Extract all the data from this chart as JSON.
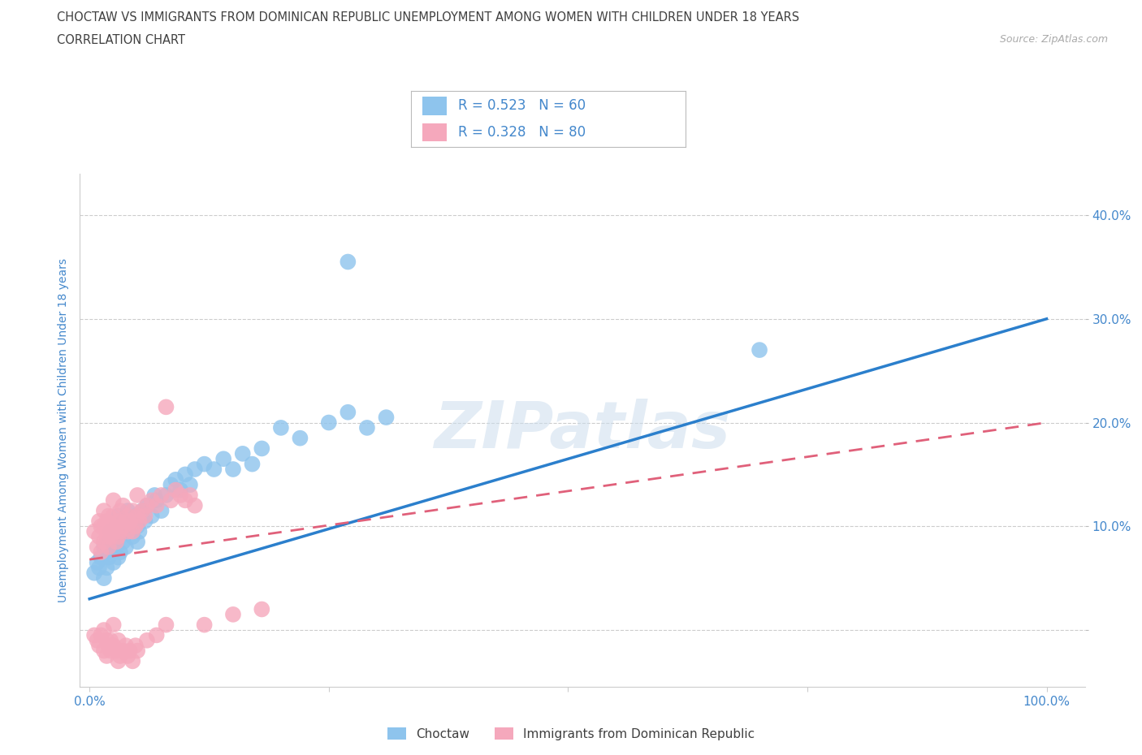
{
  "title_line1": "CHOCTAW VS IMMIGRANTS FROM DOMINICAN REPUBLIC UNEMPLOYMENT AMONG WOMEN WITH CHILDREN UNDER 18 YEARS",
  "title_line2": "CORRELATION CHART",
  "source_text": "Source: ZipAtlas.com",
  "ylabel": "Unemployment Among Women with Children Under 18 years",
  "x_tick_positions": [
    0.0,
    0.25,
    0.5,
    0.75,
    1.0
  ],
  "x_tick_labels": [
    "0.0%",
    "",
    "",
    "",
    "100.0%"
  ],
  "y_tick_positions": [
    0.0,
    0.1,
    0.2,
    0.3,
    0.4
  ],
  "y_tick_labels": [
    "",
    "10.0%",
    "20.0%",
    "30.0%",
    "40.0%"
  ],
  "xlim": [
    -0.01,
    1.04
  ],
  "ylim": [
    -0.055,
    0.44
  ],
  "watermark": "ZIPatlas",
  "legend_r1": "R = 0.523   N = 60",
  "legend_r2": "R = 0.328   N = 80",
  "choctaw_color": "#8ec4ed",
  "immigrant_color": "#f5a8bc",
  "choctaw_line_color": "#2b7fcc",
  "immigrant_line_color": "#e0607a",
  "title_color": "#404040",
  "tick_label_color": "#4488cc",
  "background_color": "#ffffff",
  "choctaw_trend_x0": 0.0,
  "choctaw_trend_x1": 1.0,
  "choctaw_trend_y0": 0.03,
  "choctaw_trend_y1": 0.3,
  "immigrant_trend_x0": 0.0,
  "immigrant_trend_x1": 1.0,
  "immigrant_trend_y0": 0.068,
  "immigrant_trend_y1": 0.2,
  "choctaw_points": [
    [
      0.005,
      0.055
    ],
    [
      0.008,
      0.065
    ],
    [
      0.01,
      0.06
    ],
    [
      0.012,
      0.07
    ],
    [
      0.015,
      0.05
    ],
    [
      0.015,
      0.08
    ],
    [
      0.018,
      0.06
    ],
    [
      0.018,
      0.075
    ],
    [
      0.02,
      0.07
    ],
    [
      0.02,
      0.085
    ],
    [
      0.022,
      0.08
    ],
    [
      0.022,
      0.095
    ],
    [
      0.025,
      0.065
    ],
    [
      0.025,
      0.075
    ],
    [
      0.028,
      0.085
    ],
    [
      0.028,
      0.1
    ],
    [
      0.03,
      0.07
    ],
    [
      0.03,
      0.09
    ],
    [
      0.03,
      0.11
    ],
    [
      0.032,
      0.075
    ],
    [
      0.035,
      0.085
    ],
    [
      0.035,
      0.105
    ],
    [
      0.038,
      0.08
    ],
    [
      0.04,
      0.095
    ],
    [
      0.04,
      0.115
    ],
    [
      0.042,
      0.1
    ],
    [
      0.045,
      0.09
    ],
    [
      0.048,
      0.11
    ],
    [
      0.05,
      0.085
    ],
    [
      0.05,
      0.1
    ],
    [
      0.052,
      0.095
    ],
    [
      0.055,
      0.115
    ],
    [
      0.058,
      0.105
    ],
    [
      0.06,
      0.12
    ],
    [
      0.065,
      0.11
    ],
    [
      0.068,
      0.13
    ],
    [
      0.07,
      0.125
    ],
    [
      0.075,
      0.115
    ],
    [
      0.08,
      0.13
    ],
    [
      0.085,
      0.14
    ],
    [
      0.09,
      0.145
    ],
    [
      0.095,
      0.135
    ],
    [
      0.1,
      0.15
    ],
    [
      0.105,
      0.14
    ],
    [
      0.11,
      0.155
    ],
    [
      0.12,
      0.16
    ],
    [
      0.13,
      0.155
    ],
    [
      0.14,
      0.165
    ],
    [
      0.15,
      0.155
    ],
    [
      0.16,
      0.17
    ],
    [
      0.17,
      0.16
    ],
    [
      0.18,
      0.175
    ],
    [
      0.2,
      0.195
    ],
    [
      0.22,
      0.185
    ],
    [
      0.25,
      0.2
    ],
    [
      0.27,
      0.21
    ],
    [
      0.29,
      0.195
    ],
    [
      0.31,
      0.205
    ],
    [
      0.7,
      0.27
    ],
    [
      0.27,
      0.355
    ]
  ],
  "immigrant_points": [
    [
      0.005,
      0.095
    ],
    [
      0.008,
      0.08
    ],
    [
      0.01,
      0.09
    ],
    [
      0.01,
      0.105
    ],
    [
      0.012,
      0.075
    ],
    [
      0.012,
      0.1
    ],
    [
      0.015,
      0.085
    ],
    [
      0.015,
      0.1
    ],
    [
      0.015,
      0.115
    ],
    [
      0.018,
      0.09
    ],
    [
      0.018,
      0.105
    ],
    [
      0.02,
      0.08
    ],
    [
      0.02,
      0.095
    ],
    [
      0.02,
      0.11
    ],
    [
      0.022,
      0.09
    ],
    [
      0.022,
      0.1
    ],
    [
      0.025,
      0.095
    ],
    [
      0.025,
      0.11
    ],
    [
      0.025,
      0.125
    ],
    [
      0.028,
      0.085
    ],
    [
      0.028,
      0.1
    ],
    [
      0.03,
      0.09
    ],
    [
      0.03,
      0.105
    ],
    [
      0.032,
      0.095
    ],
    [
      0.032,
      0.115
    ],
    [
      0.035,
      0.1
    ],
    [
      0.035,
      0.12
    ],
    [
      0.038,
      0.105
    ],
    [
      0.04,
      0.095
    ],
    [
      0.04,
      0.11
    ],
    [
      0.042,
      0.105
    ],
    [
      0.045,
      0.095
    ],
    [
      0.045,
      0.115
    ],
    [
      0.048,
      0.1
    ],
    [
      0.05,
      0.11
    ],
    [
      0.05,
      0.13
    ],
    [
      0.052,
      0.105
    ],
    [
      0.055,
      0.115
    ],
    [
      0.058,
      0.11
    ],
    [
      0.06,
      0.12
    ],
    [
      0.065,
      0.125
    ],
    [
      0.07,
      0.12
    ],
    [
      0.075,
      0.13
    ],
    [
      0.08,
      0.215
    ],
    [
      0.085,
      0.125
    ],
    [
      0.09,
      0.135
    ],
    [
      0.095,
      0.13
    ],
    [
      0.1,
      0.125
    ],
    [
      0.105,
      0.13
    ],
    [
      0.11,
      0.12
    ],
    [
      0.005,
      -0.005
    ],
    [
      0.008,
      -0.01
    ],
    [
      0.01,
      -0.015
    ],
    [
      0.012,
      -0.005
    ],
    [
      0.015,
      0.0
    ],
    [
      0.015,
      -0.02
    ],
    [
      0.018,
      -0.01
    ],
    [
      0.018,
      -0.025
    ],
    [
      0.02,
      -0.015
    ],
    [
      0.022,
      -0.02
    ],
    [
      0.022,
      -0.01
    ],
    [
      0.025,
      -0.015
    ],
    [
      0.025,
      0.005
    ],
    [
      0.028,
      -0.02
    ],
    [
      0.03,
      -0.03
    ],
    [
      0.03,
      -0.01
    ],
    [
      0.032,
      -0.025
    ],
    [
      0.035,
      -0.02
    ],
    [
      0.038,
      -0.015
    ],
    [
      0.04,
      -0.025
    ],
    [
      0.042,
      -0.02
    ],
    [
      0.045,
      -0.03
    ],
    [
      0.048,
      -0.015
    ],
    [
      0.05,
      -0.02
    ],
    [
      0.06,
      -0.01
    ],
    [
      0.07,
      -0.005
    ],
    [
      0.08,
      0.005
    ],
    [
      0.12,
      0.005
    ],
    [
      0.15,
      0.015
    ],
    [
      0.18,
      0.02
    ]
  ]
}
